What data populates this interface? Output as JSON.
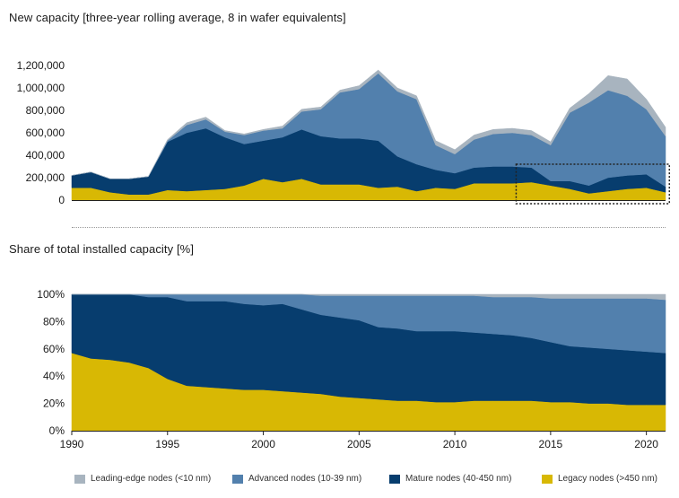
{
  "titles": {
    "top": "New capacity [three-year rolling average, 8 in wafer equivalents]",
    "bottom": "Share of total installed capacity [%]"
  },
  "colors": {
    "leading": "#a8b4bf",
    "advanced": "#5280ad",
    "mature": "#073d6e",
    "legacy": "#d8b804"
  },
  "legend": [
    {
      "key": "leading",
      "label": "Leading-edge nodes (<10 nm)"
    },
    {
      "key": "advanced",
      "label": "Advanced nodes (10-39 nm)"
    },
    {
      "key": "mature",
      "label": "Mature nodes (40-450 nm)"
    },
    {
      "key": "legacy",
      "label": "Legacy nodes (>450 nm)"
    }
  ],
  "chart_data": [
    {
      "type": "area",
      "stacked": true,
      "title": "New capacity [three-year rolling average, 8 in wafer equivalents]",
      "x": [
        1990,
        1991,
        1992,
        1993,
        1994,
        1995,
        1996,
        1997,
        1998,
        1999,
        2000,
        2001,
        2002,
        2003,
        2004,
        2005,
        2006,
        2007,
        2008,
        2009,
        2010,
        2011,
        2012,
        2013,
        2014,
        2015,
        2016,
        2017,
        2018,
        2019,
        2020,
        2021
      ],
      "xlim": [
        1990,
        2021
      ],
      "ylim": [
        0,
        1200000
      ],
      "yticks": [
        0,
        200000,
        400000,
        600000,
        800000,
        1000000,
        1200000
      ],
      "ytick_labels": [
        "0",
        "200,000",
        "400,000",
        "600,000",
        "800,000",
        "1,000,000",
        "1,200,000"
      ],
      "series": [
        {
          "key": "legacy",
          "name": "Legacy nodes (>450 nm)",
          "values": [
            110000,
            110000,
            70000,
            50000,
            50000,
            90000,
            80000,
            90000,
            100000,
            130000,
            190000,
            160000,
            190000,
            140000,
            140000,
            140000,
            110000,
            120000,
            80000,
            110000,
            100000,
            150000,
            150000,
            150000,
            160000,
            130000,
            100000,
            60000,
            80000,
            100000,
            110000,
            70000
          ]
        },
        {
          "key": "mature",
          "name": "Mature nodes (40-450 nm)",
          "values": [
            110000,
            140000,
            120000,
            140000,
            160000,
            430000,
            520000,
            550000,
            460000,
            370000,
            340000,
            400000,
            440000,
            430000,
            410000,
            410000,
            420000,
            270000,
            240000,
            160000,
            140000,
            140000,
            150000,
            150000,
            130000,
            40000,
            70000,
            70000,
            120000,
            120000,
            120000,
            50000
          ]
        },
        {
          "key": "advanced",
          "name": "Advanced nodes (10-39 nm)",
          "values": [
            0,
            0,
            0,
            0,
            0,
            10000,
            70000,
            80000,
            50000,
            80000,
            90000,
            80000,
            160000,
            240000,
            410000,
            440000,
            600000,
            580000,
            580000,
            220000,
            170000,
            250000,
            290000,
            300000,
            290000,
            320000,
            610000,
            740000,
            780000,
            710000,
            580000,
            450000
          ]
        },
        {
          "key": "leading",
          "name": "Leading-edge nodes (<10 nm)",
          "values": [
            0,
            0,
            0,
            0,
            0,
            10000,
            20000,
            20000,
            10000,
            10000,
            10000,
            20000,
            20000,
            20000,
            20000,
            30000,
            30000,
            30000,
            30000,
            40000,
            40000,
            40000,
            40000,
            40000,
            40000,
            30000,
            40000,
            80000,
            130000,
            150000,
            90000,
            80000
          ]
        }
      ]
    },
    {
      "type": "area",
      "stacked": true,
      "title": "Share of total installed capacity [%]",
      "x": [
        1990,
        1991,
        1992,
        1993,
        1994,
        1995,
        1996,
        1997,
        1998,
        1999,
        2000,
        2001,
        2002,
        2003,
        2004,
        2005,
        2006,
        2007,
        2008,
        2009,
        2010,
        2011,
        2012,
        2013,
        2014,
        2015,
        2016,
        2017,
        2018,
        2019,
        2020,
        2021
      ],
      "xlim": [
        1990,
        2021
      ],
      "ylim": [
        0,
        100
      ],
      "yticks": [
        0,
        20,
        40,
        60,
        80,
        100
      ],
      "ytick_labels": [
        "0%",
        "20%",
        "40%",
        "60%",
        "80%",
        "100%"
      ],
      "xticks": [
        1990,
        1995,
        2000,
        2005,
        2010,
        2015,
        2020
      ],
      "xtick_labels": [
        "1990",
        "1995",
        "2000",
        "2005",
        "2010",
        "2015",
        "2020"
      ],
      "series": [
        {
          "key": "legacy",
          "name": "Legacy nodes (>450 nm)",
          "values": [
            57,
            53,
            52,
            50,
            46,
            38,
            33,
            32,
            31,
            30,
            30,
            29,
            28,
            27,
            25,
            24,
            23,
            22,
            22,
            21,
            21,
            22,
            22,
            22,
            22,
            21,
            21,
            20,
            20,
            19,
            19,
            19
          ]
        },
        {
          "key": "mature",
          "name": "Mature nodes (40-450 nm)",
          "values": [
            43,
            47,
            48,
            50,
            52,
            60,
            62,
            63,
            64,
            63,
            62,
            64,
            61,
            58,
            58,
            57,
            53,
            53,
            51,
            52,
            52,
            50,
            49,
            48,
            46,
            44,
            41,
            41,
            40,
            40,
            39,
            38
          ]
        },
        {
          "key": "advanced",
          "name": "Advanced nodes (10-39 nm)",
          "values": [
            0,
            0,
            0,
            0,
            2,
            2,
            5,
            5,
            5,
            7,
            8,
            7,
            11,
            14,
            16,
            18,
            23,
            24,
            26,
            26,
            26,
            27,
            27,
            28,
            30,
            32,
            35,
            36,
            37,
            38,
            39,
            39
          ]
        },
        {
          "key": "leading",
          "name": "Leading-edge nodes (<10 nm)",
          "values": [
            0,
            0,
            0,
            0,
            0,
            0,
            0,
            0,
            0,
            0,
            0,
            0,
            0,
            1,
            1,
            1,
            1,
            1,
            1,
            1,
            1,
            1,
            2,
            2,
            2,
            3,
            3,
            3,
            3,
            3,
            3,
            4
          ]
        }
      ]
    }
  ]
}
